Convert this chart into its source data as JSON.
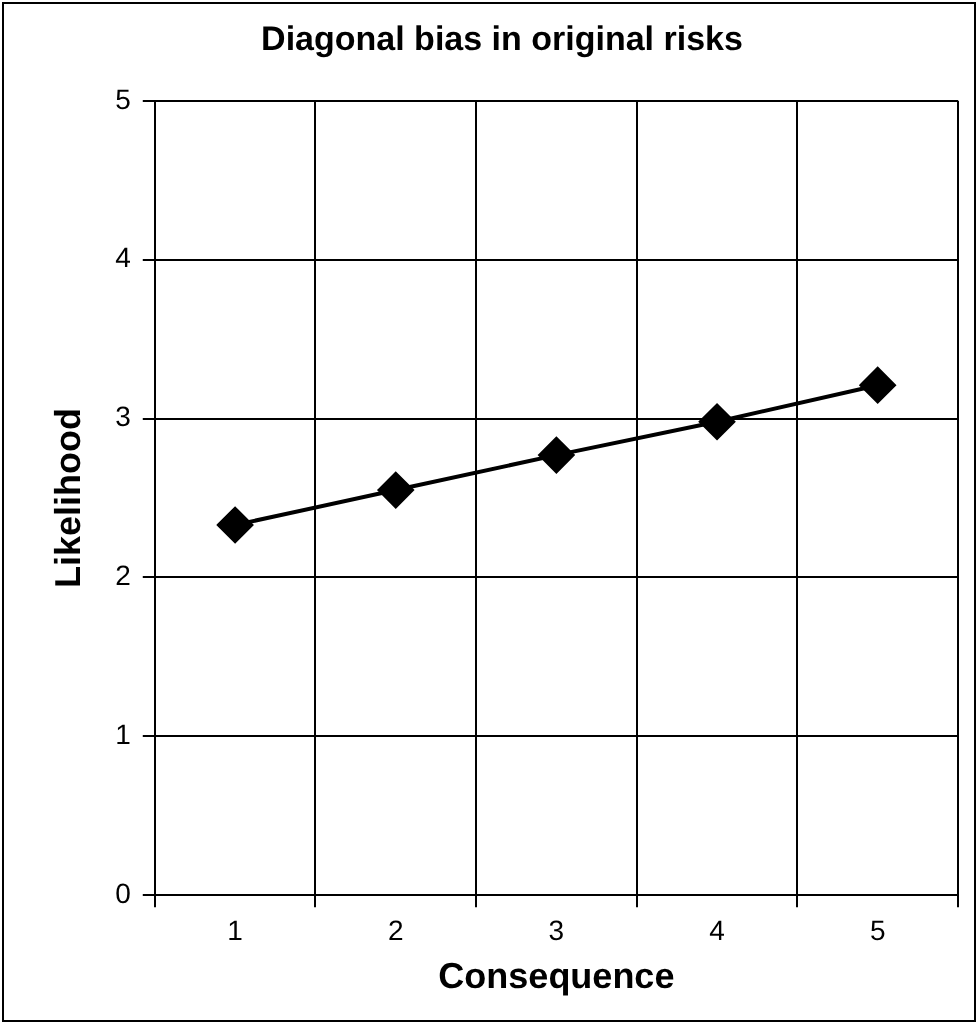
{
  "chart_data": {
    "type": "line",
    "title": "Diagonal bias in original risks",
    "xlabel": "Consequence",
    "ylabel": "Likelihood",
    "categories": [
      "1",
      "2",
      "3",
      "4",
      "5"
    ],
    "series": [
      {
        "color": "#000000",
        "values": [
          2.33,
          2.55,
          2.77,
          2.98,
          3.21
        ]
      }
    ],
    "ylim": [
      0,
      5
    ],
    "yticks": [
      0,
      1,
      2,
      3,
      4,
      5
    ],
    "grid": true,
    "legend": false,
    "marker": "diamond",
    "line_style": "solid"
  }
}
